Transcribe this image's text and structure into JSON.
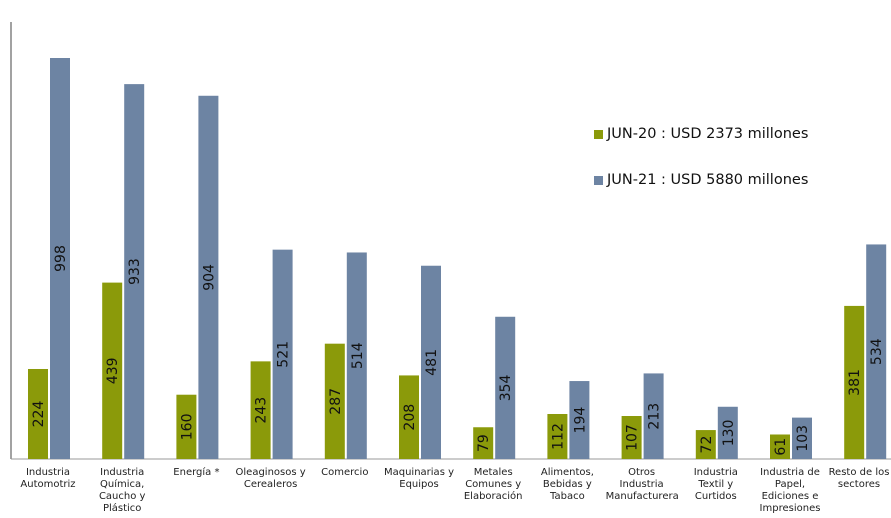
{
  "colors": {
    "jun20": "#8b9a0a",
    "jun21": "#6d84a3"
  },
  "legend": {
    "jun20_label": "JUN-20 : USD 2373 millones",
    "jun21_label": "JUN-21 : USD 5880 millones"
  },
  "chart_data": {
    "type": "bar",
    "title": "",
    "xlabel": "",
    "ylabel": "",
    "ylim": [
      0,
      1100
    ],
    "legend_position": "right",
    "grid": false,
    "categories": [
      "Industria Automotriz",
      "Industria Química, Caucho y Plástico",
      "Energía *",
      "Oleaginosos y Cerealeros",
      "Comercio",
      "Maquinarias y Equipos",
      "Metales Comunes y Elaboración",
      "Alimentos, Bebidas y Tabaco",
      "Otros Industria Manufacturera",
      "Industria Textil y Curtidos",
      "Industria de Papel, Ediciones e Impresiones",
      "Resto de los sectores"
    ],
    "series": [
      {
        "name": "JUN-20 : USD 2373 millones",
        "values": [
          224,
          439,
          160,
          243,
          287,
          208,
          79,
          112,
          107,
          72,
          61,
          381
        ]
      },
      {
        "name": "JUN-21 : USD 5880 millones",
        "values": [
          998,
          933,
          904,
          521,
          514,
          481,
          354,
          194,
          213,
          130,
          103,
          534
        ]
      }
    ]
  }
}
